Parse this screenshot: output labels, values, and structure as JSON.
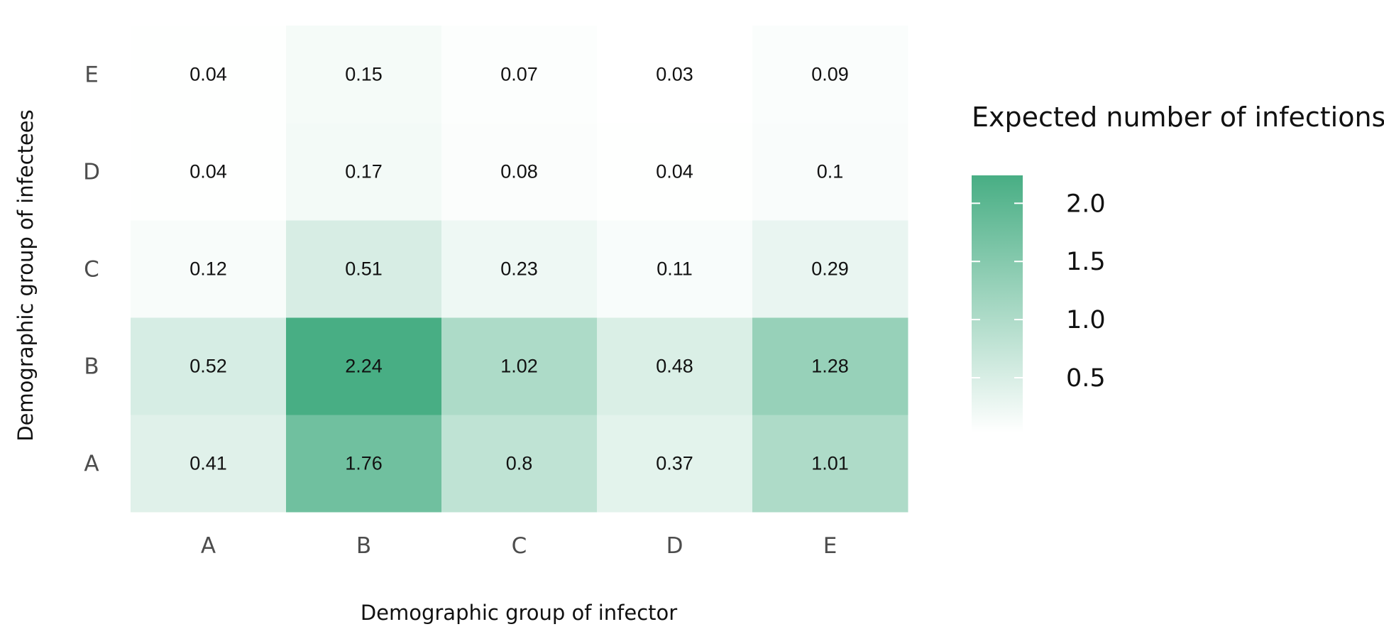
{
  "chart_data": {
    "type": "heatmap",
    "x_categories": [
      "A",
      "B",
      "C",
      "D",
      "E"
    ],
    "y_categories": [
      "A",
      "B",
      "C",
      "D",
      "E"
    ],
    "xlabel": "Demographic group of infector",
    "ylabel": "Demographic group of infectees",
    "values": [
      [
        0.41,
        1.76,
        0.8,
        0.37,
        1.01
      ],
      [
        0.52,
        2.24,
        1.02,
        0.48,
        1.28
      ],
      [
        0.12,
        0.51,
        0.23,
        0.11,
        0.29
      ],
      [
        0.04,
        0.17,
        0.08,
        0.04,
        0.1
      ],
      [
        0.04,
        0.15,
        0.07,
        0.03,
        0.09
      ]
    ],
    "value_labels": [
      [
        "0.41",
        "1.76",
        "0.8",
        "0.37",
        "1.01"
      ],
      [
        "0.52",
        "2.24",
        "1.02",
        "0.48",
        "1.28"
      ],
      [
        "0.12",
        "0.51",
        "0.23",
        "0.11",
        "0.29"
      ],
      [
        "0.04",
        "0.17",
        "0.08",
        "0.04",
        "0.1"
      ],
      [
        "0.04",
        "0.15",
        "0.07",
        "0.03",
        "0.09"
      ]
    ],
    "legend": {
      "title": "Expected number of infections",
      "ticks": [
        0.5,
        1.0,
        1.5,
        2.0
      ],
      "tick_labels": [
        "0.5",
        "1.0",
        "1.5",
        "2.0"
      ],
      "range": [
        0.03,
        2.24
      ],
      "placement": "right"
    },
    "colors": {
      "low": "#ffffff",
      "high": "#48ae84"
    },
    "grid": false
  }
}
